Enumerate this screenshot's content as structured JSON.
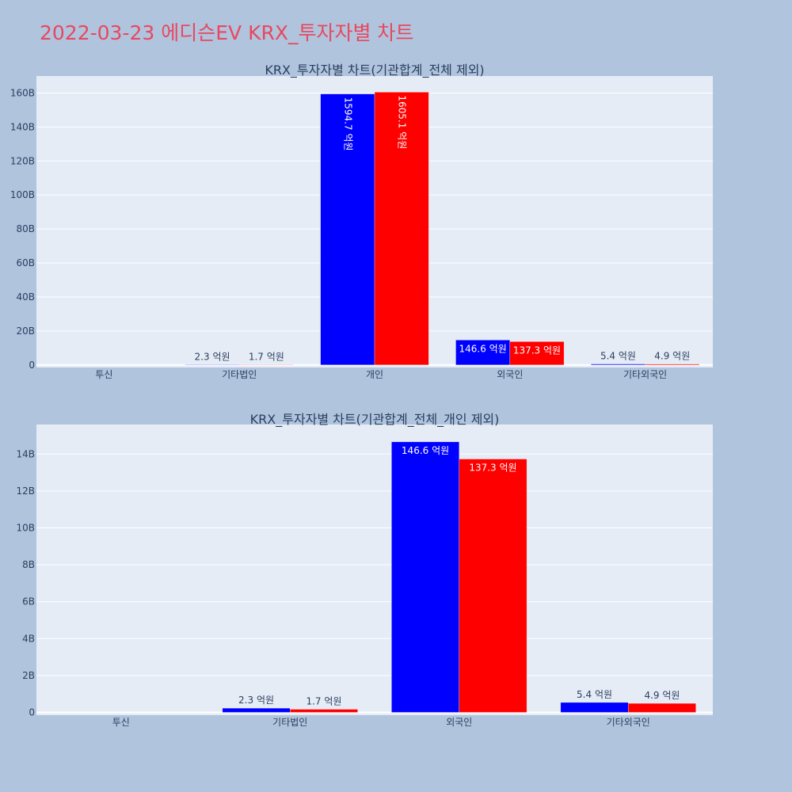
{
  "page_title": "2022-03-23 에디슨EV KRX_투자자별 차트",
  "colors": {
    "buy": "#0000ff",
    "sell": "#ff0000",
    "title": "#e8485f",
    "background": "#b0c4de",
    "plot_background": "#e5ecf6"
  },
  "chart_data": [
    {
      "type": "bar",
      "title": "KRX_투자자별 차트(기관합계_전체 제외)",
      "categories": [
        "투신",
        "기타법인",
        "개인",
        "외국인",
        "기타외국인"
      ],
      "series": [
        {
          "color": "#0000ff",
          "values": [
            0,
            0.23,
            159.47,
            14.66,
            0.54
          ],
          "labels": [
            "",
            "2.3 억원",
            "1594.7 억원",
            "146.6 억원",
            "5.4 억원"
          ]
        },
        {
          "color": "#ff0000",
          "values": [
            0,
            0.17,
            160.51,
            13.73,
            0.49
          ],
          "labels": [
            "",
            "1.7 억원",
            "1605.1 억원",
            "137.3 억원",
            "4.9 억원"
          ]
        }
      ],
      "ylim": [
        -1.5,
        170
      ],
      "yticks": [
        0,
        20,
        40,
        60,
        80,
        100,
        120,
        140,
        160
      ],
      "ytick_labels": [
        "0",
        "20B",
        "40B",
        "60B",
        "80B",
        "100B",
        "120B",
        "140B",
        "160B"
      ],
      "grid": true
    },
    {
      "type": "bar",
      "title": "KRX_투자자별 차트(기관합계_전체_개인 제외)",
      "categories": [
        "투신",
        "기타법인",
        "외국인",
        "기타외국인"
      ],
      "series": [
        {
          "color": "#0000ff",
          "values": [
            0,
            0.23,
            14.66,
            0.54
          ],
          "labels": [
            "",
            "2.3 억원",
            "146.6 억원",
            "5.4 억원"
          ]
        },
        {
          "color": "#ff0000",
          "values": [
            0,
            0.17,
            13.73,
            0.49
          ],
          "labels": [
            "",
            "1.7 억원",
            "137.3 억원",
            "4.9 억원"
          ]
        }
      ],
      "ylim": [
        -0.15,
        15.6
      ],
      "yticks": [
        0,
        2,
        4,
        6,
        8,
        10,
        12,
        14
      ],
      "ytick_labels": [
        "0",
        "2B",
        "4B",
        "6B",
        "8B",
        "10B",
        "12B",
        "14B"
      ],
      "grid": true
    }
  ]
}
